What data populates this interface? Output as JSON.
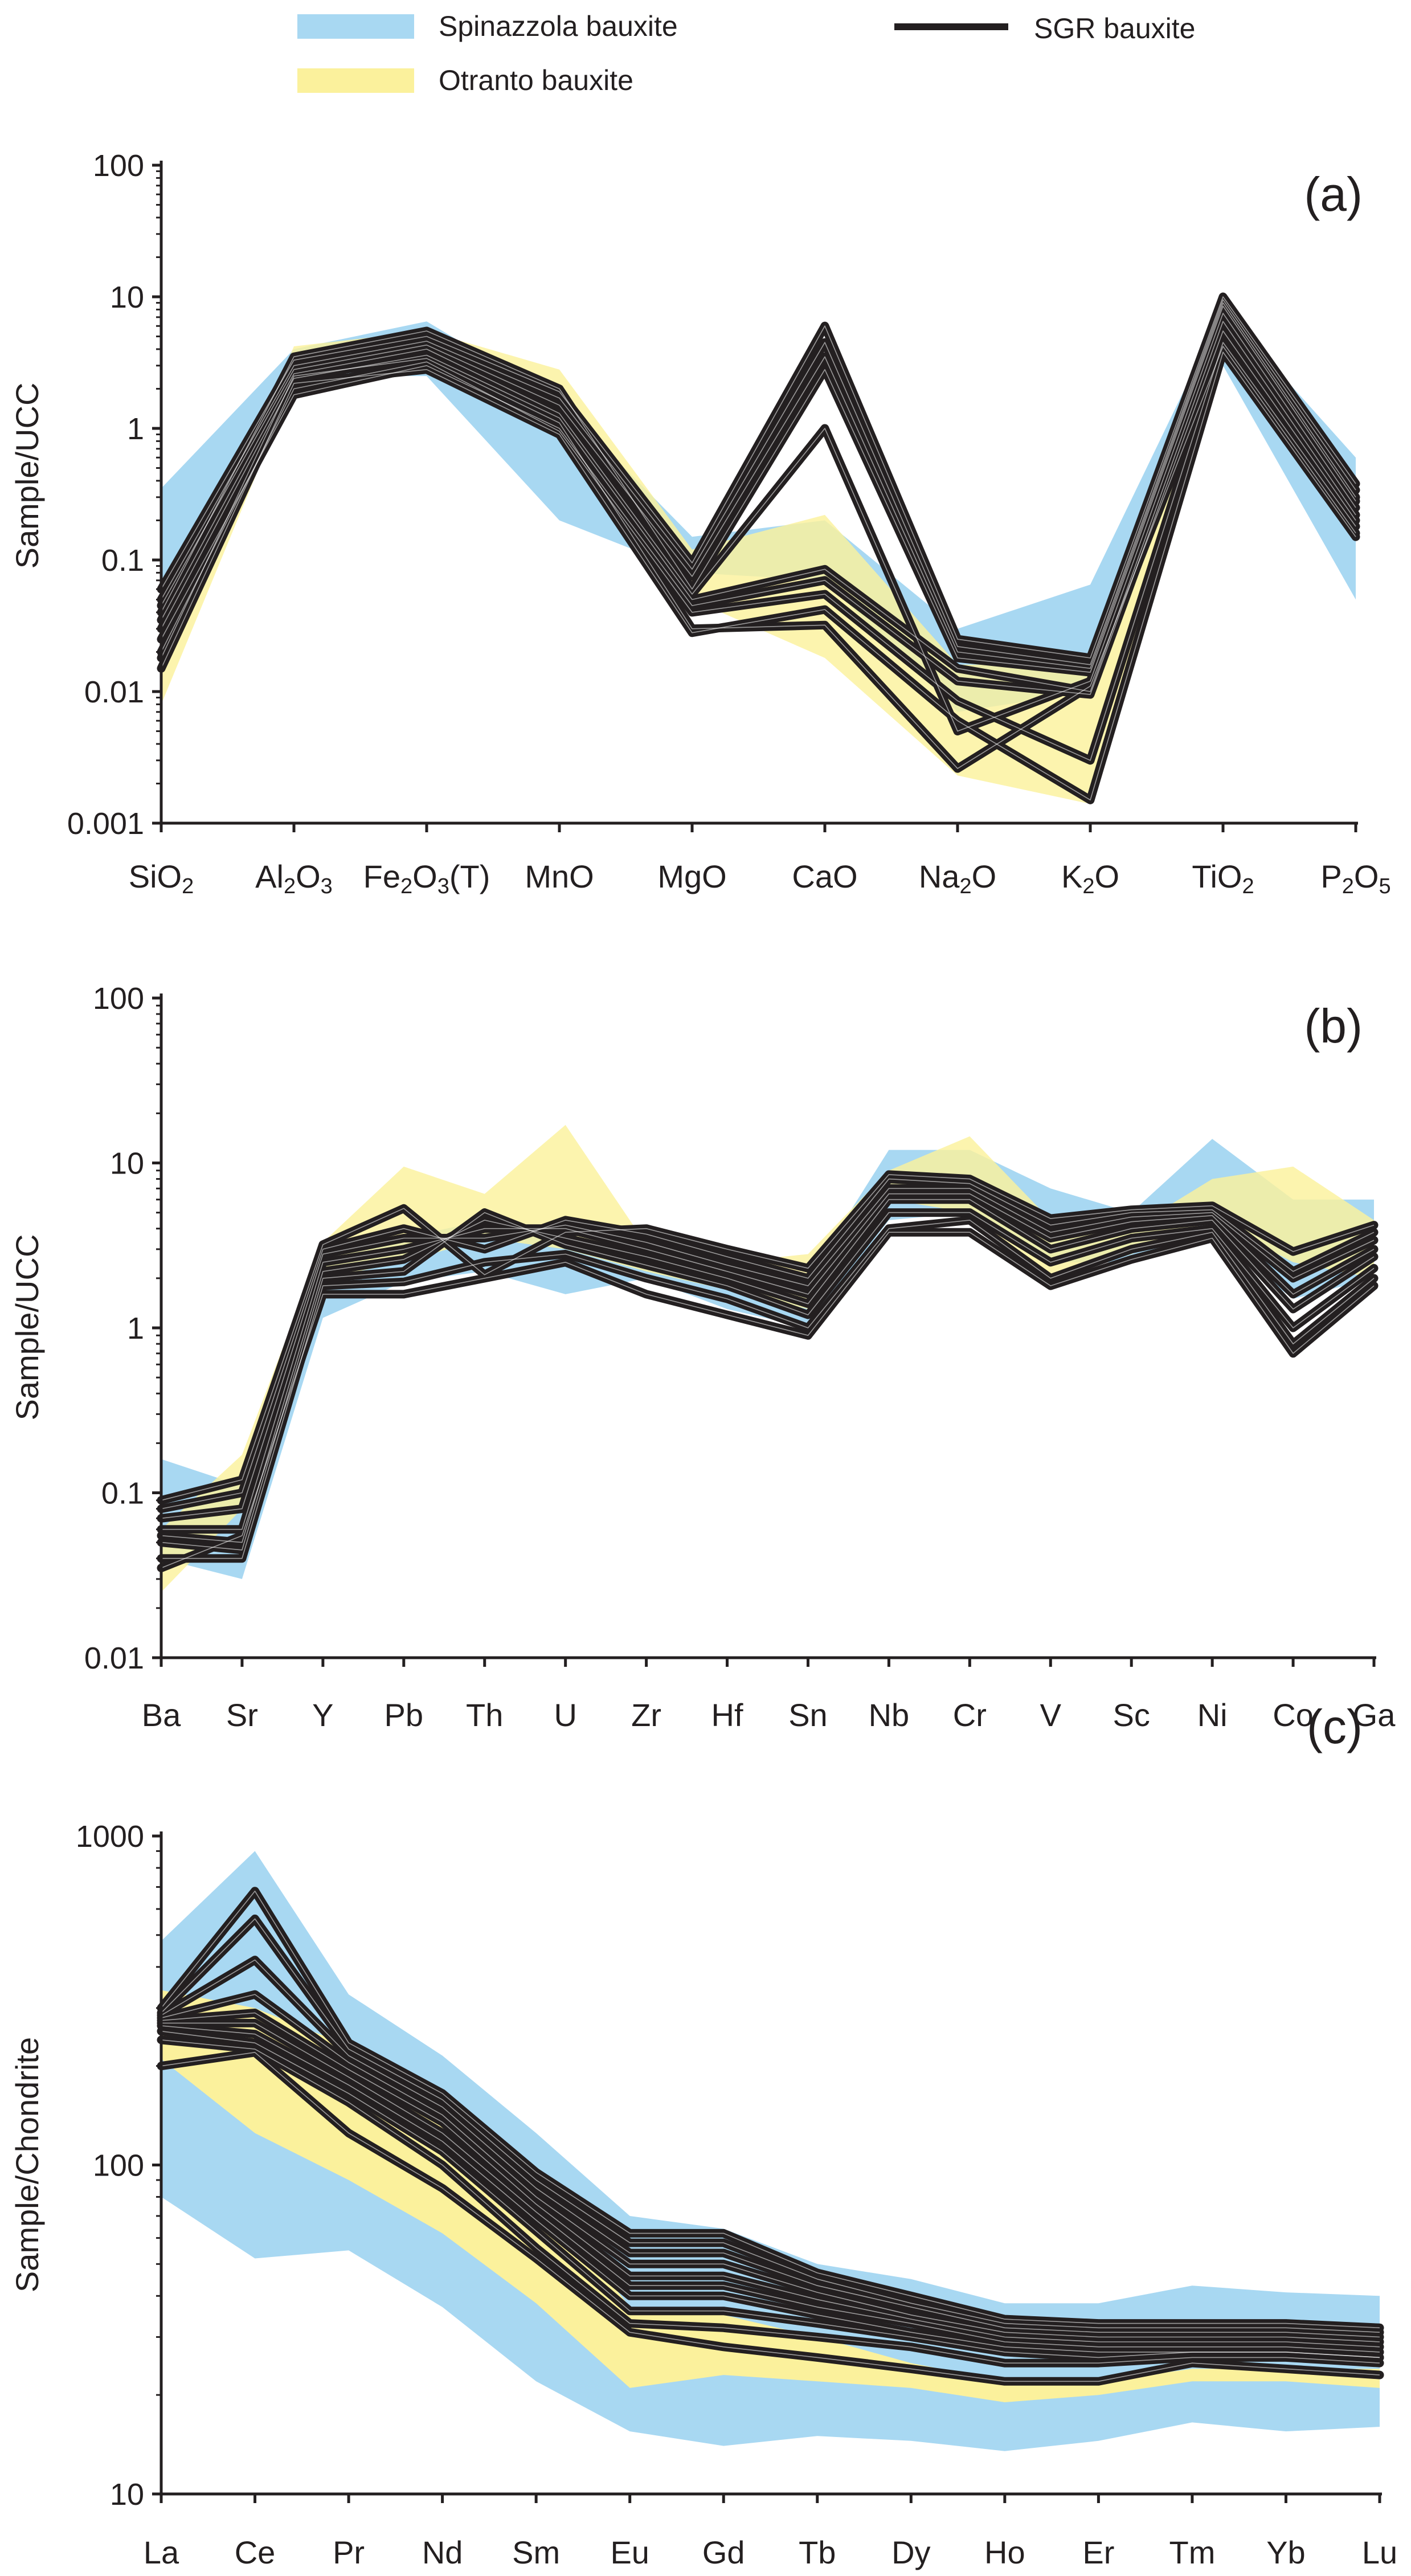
{
  "legend": {
    "spinazzola": {
      "label": "Spinazzola bauxite",
      "color": "#a8d8f2"
    },
    "otranto": {
      "label": "Otranto bauxite",
      "color": "#fbf19c"
    },
    "sgr": {
      "label": "SGR bauxite",
      "color": "#231f20"
    }
  },
  "chart_data": [
    {
      "type": "line",
      "title": "(a)",
      "ylabel": "Sample/UCC",
      "yscale": "log",
      "ylim": [
        0.001,
        100
      ],
      "yticks": [
        "0.001",
        "0.01",
        "0.1",
        "1",
        "10",
        "100"
      ],
      "ytick_values": [
        0.001,
        0.01,
        0.1,
        1,
        10,
        100
      ],
      "categories": [
        {
          "base": "SiO",
          "sub": "2"
        },
        {
          "base": "Al",
          "sub": "2",
          "mid": "O",
          "sub2": "3"
        },
        {
          "base": "Fe",
          "sub": "2",
          "mid": "O",
          "sub2": "3",
          "tail": "(T)"
        },
        {
          "base": "MnO"
        },
        {
          "base": "MgO"
        },
        {
          "base": "CaO"
        },
        {
          "base": "Na",
          "sub": "2",
          "mid": "O"
        },
        {
          "base": "K",
          "sub": "2",
          "mid": "O"
        },
        {
          "base": "TiO",
          "sub": "2"
        },
        {
          "base": "P",
          "sub": "2",
          "mid": "O",
          "sub2": "5"
        }
      ],
      "bands": [
        {
          "name": "Spinazzola bauxite",
          "upper": [
            0.35,
            4,
            6.5,
            1.6,
            0.15,
            0.2,
            0.03,
            0.065,
            8,
            0.6
          ],
          "lower": [
            0.02,
            2.5,
            2.5,
            0.2,
            0.08,
            0.07,
            0.007,
            0.01,
            3,
            0.05
          ]
        },
        {
          "name": "Otranto bauxite",
          "upper": [
            0.02,
            4.2,
            5.5,
            2.8,
            0.12,
            0.22,
            0.016,
            0.016,
            9,
            0.4
          ],
          "lower": [
            0.008,
            2.2,
            3.5,
            1.3,
            0.05,
            0.018,
            0.0023,
            0.0014,
            4,
            0.2
          ]
        }
      ],
      "series": [
        {
          "name": "SGR bauxite",
          "values": [
            0.06,
            3.3,
            5.0,
            1.9,
            0.095,
            6.0,
            0.025,
            0.018,
            10.0,
            0.38
          ]
        },
        {
          "name": "SGR bauxite",
          "values": [
            0.05,
            3.0,
            4.6,
            1.7,
            0.085,
            4.5,
            0.022,
            0.016,
            9.5,
            0.34
          ]
        },
        {
          "name": "SGR bauxite",
          "values": [
            0.045,
            2.8,
            4.3,
            1.5,
            0.075,
            3.5,
            0.02,
            0.015,
            9.0,
            0.3
          ]
        },
        {
          "name": "SGR bauxite",
          "values": [
            0.04,
            3.5,
            5.5,
            2.0,
            0.06,
            2.8,
            0.018,
            0.014,
            8.5,
            0.28
          ]
        },
        {
          "name": "SGR bauxite",
          "values": [
            0.035,
            2.6,
            4.0,
            1.3,
            0.055,
            1.0,
            0.005,
            0.012,
            7.5,
            0.25
          ]
        },
        {
          "name": "SGR bauxite",
          "values": [
            0.03,
            2.4,
            3.6,
            1.2,
            0.05,
            0.085,
            0.015,
            0.01,
            6.5,
            0.22
          ]
        },
        {
          "name": "SGR bauxite",
          "values": [
            0.025,
            1.8,
            3.0,
            1.0,
            0.045,
            0.07,
            0.012,
            0.0095,
            5.5,
            0.2
          ]
        },
        {
          "name": "SGR bauxite",
          "values": [
            0.02,
            2.0,
            3.2,
            0.95,
            0.04,
            0.055,
            0.0085,
            0.003,
            4.5,
            0.18
          ]
        },
        {
          "name": "SGR bauxite",
          "values": [
            0.015,
            2.2,
            2.8,
            0.9,
            0.028,
            0.042,
            0.006,
            0.0015,
            3.8,
            0.15
          ]
        },
        {
          "name": "SGR bauxite",
          "values": [
            0.018,
            2.5,
            3.4,
            1.1,
            0.03,
            0.032,
            0.0026,
            0.011,
            4.2,
            0.16
          ]
        }
      ]
    },
    {
      "type": "line",
      "title": "(b)",
      "ylabel": "Sample/UCC",
      "yscale": "log",
      "ylim": [
        0.01,
        100
      ],
      "yticks": [
        "0.01",
        "0.1",
        "1",
        "10",
        "100"
      ],
      "ytick_values": [
        0.01,
        0.1,
        1,
        10,
        100
      ],
      "categories": [
        {
          "base": "Ba"
        },
        {
          "base": "Sr"
        },
        {
          "base": "Y"
        },
        {
          "base": "Pb"
        },
        {
          "base": "Th"
        },
        {
          "base": "U"
        },
        {
          "base": "Zr"
        },
        {
          "base": "Hf"
        },
        {
          "base": "Sn"
        },
        {
          "base": "Nb"
        },
        {
          "base": "Cr"
        },
        {
          "base": "V"
        },
        {
          "base": "Sc"
        },
        {
          "base": "Ni"
        },
        {
          "base": "Co"
        },
        {
          "base": "Ga"
        }
      ],
      "bands": [
        {
          "name": "Spinazzola bauxite",
          "upper": [
            0.16,
            0.11,
            2.8,
            3.5,
            4.5,
            4.0,
            3.8,
            2.6,
            2.0,
            12,
            12,
            7,
            5,
            14,
            6,
            6
          ],
          "lower": [
            0.04,
            0.03,
            1.15,
            1.9,
            2.2,
            1.6,
            2.0,
            1.3,
            1.0,
            4.5,
            5.0,
            2.5,
            2.5,
            3.5,
            1.5,
            2.0
          ]
        },
        {
          "name": "Otranto bauxite",
          "upper": [
            0.06,
            0.17,
            3.3,
            9.5,
            6.5,
            17,
            3.2,
            2.5,
            2.8,
            9.0,
            14.5,
            4.5,
            4.0,
            8.0,
            9.5,
            4.5
          ],
          "lower": [
            0.025,
            0.08,
            2.0,
            2.5,
            3.5,
            3.0,
            2.2,
            1.7,
            1.3,
            6.0,
            5.0,
            2.0,
            2.8,
            4.5,
            2.5,
            2.0
          ]
        }
      ],
      "series": [
        {
          "name": "SGR bauxite",
          "values": [
            0.09,
            0.12,
            3.2,
            5.3,
            2.1,
            3.8,
            4.0,
            3.0,
            2.3,
            8.5,
            8.0,
            4.6,
            5.2,
            5.5,
            2.9,
            4.2
          ]
        },
        {
          "name": "SGR bauxite",
          "values": [
            0.08,
            0.1,
            3.0,
            4.0,
            3.0,
            4.5,
            3.7,
            2.7,
            2.0,
            8.0,
            7.5,
            4.2,
            5.0,
            5.2,
            2.2,
            3.8
          ]
        },
        {
          "name": "SGR bauxite",
          "values": [
            0.07,
            0.08,
            2.8,
            3.5,
            3.5,
            4.2,
            3.3,
            2.4,
            1.8,
            7.0,
            7.0,
            3.8,
            4.7,
            5.0,
            2.0,
            3.4
          ]
        },
        {
          "name": "SGR bauxite",
          "values": [
            0.06,
            0.06,
            2.5,
            3.0,
            4.0,
            4.0,
            3.0,
            2.2,
            1.6,
            6.5,
            6.5,
            3.5,
            4.4,
            4.8,
            1.6,
            3.0
          ]
        },
        {
          "name": "SGR bauxite",
          "values": [
            0.055,
            0.05,
            2.2,
            2.6,
            4.5,
            3.5,
            2.7,
            2.0,
            1.4,
            6.0,
            6.0,
            3.0,
            4.0,
            4.5,
            1.3,
            2.7
          ]
        },
        {
          "name": "SGR bauxite",
          "values": [
            0.05,
            0.045,
            2.0,
            2.2,
            5.0,
            3.2,
            2.4,
            1.8,
            1.2,
            5.0,
            5.0,
            2.5,
            3.5,
            4.0,
            1.0,
            2.3
          ]
        },
        {
          "name": "SGR bauxite",
          "values": [
            0.04,
            0.04,
            1.8,
            1.9,
            2.5,
            2.8,
            2.0,
            1.5,
            1.0,
            4.0,
            4.5,
            2.0,
            3.0,
            3.8,
            0.8,
            2.0
          ]
        },
        {
          "name": "SGR bauxite",
          "values": [
            0.035,
            0.055,
            1.6,
            1.6,
            2.0,
            2.5,
            1.6,
            1.2,
            0.9,
            3.8,
            3.8,
            1.8,
            2.6,
            3.5,
            0.7,
            1.8
          ]
        }
      ]
    },
    {
      "type": "line",
      "title": "(c)",
      "ylabel": "Sample/Chondrite",
      "yscale": "log",
      "ylim": [
        10,
        1000
      ],
      "yticks": [
        "10",
        "100",
        "1000"
      ],
      "ytick_values": [
        10,
        100,
        1000
      ],
      "categories": [
        {
          "base": "La"
        },
        {
          "base": "Ce"
        },
        {
          "base": "Pr"
        },
        {
          "base": "Nd"
        },
        {
          "base": "Sm"
        },
        {
          "base": "Eu"
        },
        {
          "base": "Gd"
        },
        {
          "base": "Tb"
        },
        {
          "base": "Dy"
        },
        {
          "base": "Ho"
        },
        {
          "base": "Er"
        },
        {
          "base": "Tm"
        },
        {
          "base": "Yb"
        },
        {
          "base": "Lu"
        }
      ],
      "bands": [
        {
          "name": "Spinazzola bauxite",
          "upper": [
            480,
            900,
            330,
            215,
            125,
            70,
            64,
            50,
            45,
            38,
            38,
            43,
            41,
            40
          ],
          "lower": [
            80,
            52,
            55,
            37,
            22,
            15.5,
            14,
            15,
            14.5,
            13.5,
            14.5,
            16.5,
            15.5,
            16
          ]
        },
        {
          "name": "Otranto bauxite",
          "upper": [
            340,
            300,
            230,
            165,
            85,
            37,
            35,
            30,
            25,
            22,
            22,
            24,
            24,
            24
          ]
        },
        {
          "name": "Otranto bauxite lower",
          "lower": [
            210,
            125,
            90,
            62,
            38,
            21,
            23,
            22,
            21,
            19,
            20,
            22,
            22,
            21
          ]
        }
      ],
      "series": [
        {
          "name": "SGR bauxite",
          "values": [
            300,
            680,
            235,
            165,
            95,
            62,
            62,
            47,
            40,
            34,
            33,
            33,
            33,
            32
          ]
        },
        {
          "name": "SGR bauxite",
          "values": [
            290,
            560,
            225,
            158,
            90,
            58,
            58,
            45,
            38,
            33,
            32,
            32,
            32,
            31
          ]
        },
        {
          "name": "SGR bauxite",
          "values": [
            285,
            420,
            215,
            150,
            85,
            54,
            54,
            43,
            37,
            32,
            31,
            31,
            31,
            30
          ]
        },
        {
          "name": "SGR bauxite",
          "values": [
            280,
            330,
            205,
            142,
            80,
            50,
            50,
            41,
            35,
            31,
            30,
            30,
            30,
            29
          ]
        },
        {
          "name": "SGR bauxite",
          "values": [
            275,
            290,
            195,
            135,
            76,
            46,
            46,
            39,
            34,
            30,
            29,
            29,
            29,
            28
          ]
        },
        {
          "name": "SGR bauxite",
          "values": [
            270,
            270,
            185,
            125,
            72,
            43,
            43,
            37,
            33,
            29,
            28,
            28,
            28,
            27
          ]
        },
        {
          "name": "SGR bauxite",
          "values": [
            265,
            250,
            175,
            118,
            68,
            40,
            40,
            35,
            31,
            28,
            27,
            27,
            27,
            26
          ]
        },
        {
          "name": "SGR bauxite",
          "values": [
            255,
            235,
            165,
            110,
            63,
            36,
            36,
            33,
            30,
            27,
            26,
            27,
            27,
            26
          ]
        },
        {
          "name": "SGR bauxite",
          "values": [
            240,
            225,
            155,
            100,
            56,
            33,
            32,
            30,
            28,
            25,
            25,
            26,
            26,
            25
          ]
        },
        {
          "name": "SGR bauxite",
          "values": [
            200,
            220,
            125,
            85,
            52,
            31,
            28,
            26,
            24,
            22,
            22,
            25,
            24,
            23
          ]
        }
      ]
    }
  ]
}
